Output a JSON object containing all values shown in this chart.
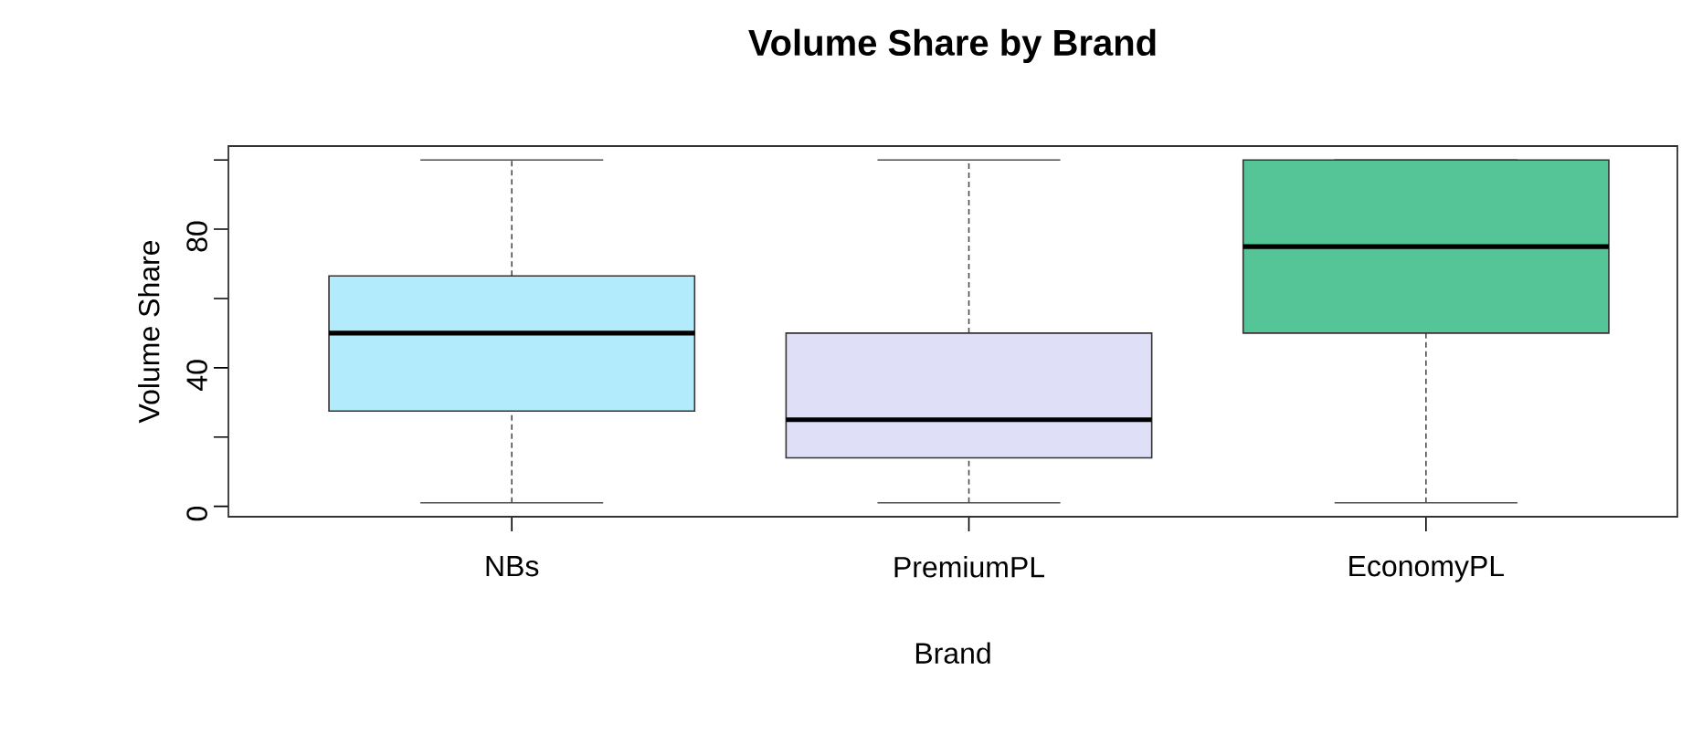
{
  "chart_data": {
    "type": "box",
    "title": "Volume Share by Brand",
    "xlabel": "Brand",
    "ylabel": "Volume Share",
    "categories": [
      "NBs",
      "PremiumPL",
      "EconomyPL"
    ],
    "colors": [
      "#b2ebfc",
      "#dfdff8",
      "#55c597"
    ],
    "boxes": [
      {
        "low": 1,
        "q1": 27.5,
        "median": 50,
        "q3": 66.5,
        "high": 100
      },
      {
        "low": 1,
        "q1": 14,
        "median": 25,
        "q3": 50,
        "high": 100
      },
      {
        "low": 1,
        "q1": 50,
        "median": 75,
        "q3": 100,
        "high": 100
      }
    ],
    "ylim": [
      -3,
      104
    ],
    "yticks": [
      0,
      {
        "value": 20,
        "label": null
      },
      40,
      {
        "value": 60,
        "label": null
      },
      80,
      {
        "value": 100,
        "label": null
      }
    ]
  }
}
